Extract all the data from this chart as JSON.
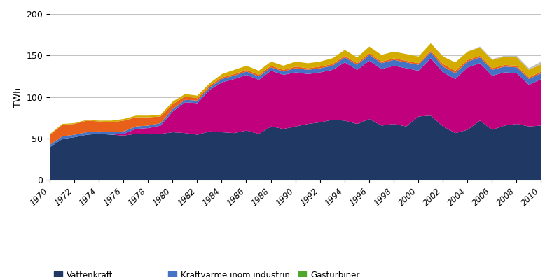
{
  "years": [
    1970,
    1971,
    1972,
    1973,
    1974,
    1975,
    1976,
    1977,
    1978,
    1979,
    1980,
    1981,
    1982,
    1983,
    1984,
    1985,
    1986,
    1987,
    1988,
    1989,
    1990,
    1991,
    1992,
    1993,
    1994,
    1995,
    1996,
    1997,
    1998,
    1999,
    2000,
    2001,
    2002,
    2003,
    2004,
    2005,
    2006,
    2007,
    2008,
    2009,
    2010
  ],
  "vattenkraft": [
    40,
    50,
    52,
    55,
    56,
    55,
    54,
    56,
    56,
    56,
    58,
    57,
    55,
    59,
    58,
    57,
    60,
    56,
    65,
    62,
    65,
    68,
    70,
    73,
    72,
    68,
    74,
    66,
    68,
    65,
    77,
    78,
    65,
    57,
    61,
    72,
    61,
    66,
    68,
    65,
    66
  ],
  "karnkraft": [
    0,
    0,
    0,
    0,
    0,
    0,
    2,
    6,
    7,
    10,
    25,
    37,
    38,
    50,
    60,
    65,
    67,
    65,
    67,
    65,
    65,
    60,
    60,
    60,
    70,
    65,
    70,
    68,
    70,
    70,
    55,
    69,
    65,
    65,
    75,
    69,
    65,
    64,
    61,
    50,
    56
  ],
  "kondenskraft": [
    12,
    14,
    13,
    14,
    12,
    12,
    13,
    11,
    10,
    8,
    6,
    4,
    3,
    2,
    2,
    2,
    2,
    2,
    2,
    2,
    2,
    2,
    2,
    2,
    2,
    2,
    2,
    2,
    2,
    2,
    2,
    2,
    3,
    3,
    2,
    2,
    2,
    2,
    2,
    2,
    2
  ],
  "kraftvarme_industri": [
    3,
    3,
    3,
    3,
    3,
    3,
    3,
    3,
    3,
    3,
    3,
    3,
    3,
    3,
    4,
    4,
    4,
    4,
    4,
    4,
    5,
    5,
    5,
    5,
    6,
    6,
    7,
    7,
    7,
    7,
    7,
    7,
    7,
    7,
    7,
    7,
    7,
    7,
    7,
    7,
    7
  ],
  "kraftvarme_varmeverk": [
    1,
    1,
    1,
    1,
    1,
    2,
    2,
    2,
    2,
    2,
    3,
    3,
    3,
    3,
    4,
    5,
    5,
    5,
    5,
    5,
    6,
    6,
    6,
    7,
    7,
    7,
    8,
    8,
    8,
    8,
    8,
    9,
    9,
    10,
    10,
    10,
    10,
    10,
    10,
    9,
    9
  ],
  "gasturbiner": [
    0,
    0,
    0,
    0,
    0,
    0,
    0,
    0,
    0,
    0,
    0,
    0,
    0,
    0,
    0,
    0,
    0,
    0,
    0,
    0,
    0,
    0,
    0,
    0,
    0,
    0,
    0,
    0,
    0,
    0,
    0,
    0,
    0,
    0,
    0,
    0,
    0,
    0,
    0,
    0,
    0
  ],
  "vindkraft": [
    0,
    0,
    0,
    0,
    0,
    0,
    0,
    0,
    0,
    0,
    0,
    0,
    0,
    0,
    0,
    0,
    0,
    0,
    0,
    0,
    0,
    0,
    0,
    0,
    0,
    0,
    0,
    0,
    0,
    0,
    0,
    0,
    0,
    0,
    0,
    1,
    1,
    1,
    2,
    2,
    3
  ],
  "colors": {
    "vattenkraft": "#1F3864",
    "karnkraft": "#C0007C",
    "kondenskraft": "#E8601A",
    "kraftvarme_industri": "#4472C4",
    "kraftvarme_varmeverk": "#D4AC00",
    "gasturbiner": "#4EA72A",
    "vindkraft": "#BFBFBF"
  },
  "ylabel": "TWh",
  "ylim": [
    0,
    200
  ],
  "yticks": [
    0,
    50,
    100,
    150,
    200
  ]
}
